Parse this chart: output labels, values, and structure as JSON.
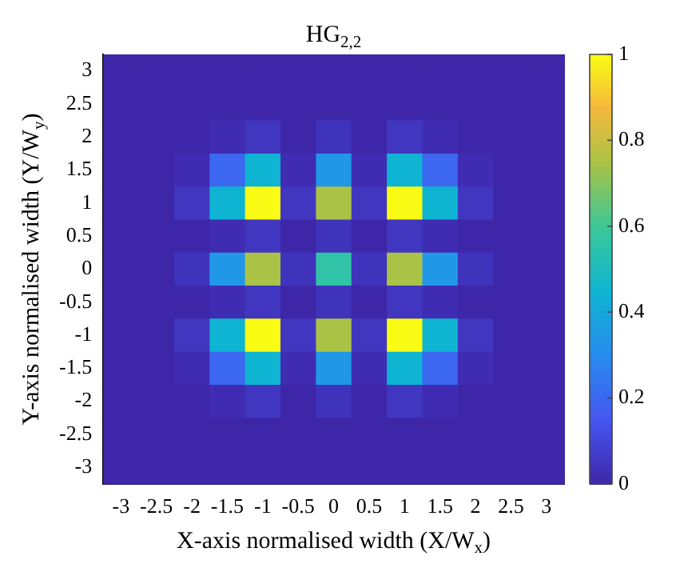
{
  "chart_data": {
    "type": "heatmap",
    "title": "HG$_{2,2}$",
    "xlabel": "X-axis normalised width (X/W$_{x}$)",
    "ylabel": "Y-axis normalised width (Y/W$_{y}$)",
    "categories": [
      "-3",
      "-2.5",
      "-2",
      "-1.5",
      "-1",
      "-0.5",
      "0",
      "0.5",
      "1",
      "1.5",
      "2",
      "2.5",
      "3"
    ],
    "y_categories": [
      "3",
      "2.5",
      "2",
      "1.5",
      "1",
      "0.5",
      "0",
      "-0.5",
      "-1",
      "-1.5",
      "-2",
      "-2.5",
      "-3"
    ],
    "cells": [
      [
        0,
        0,
        0,
        0,
        0,
        0,
        0,
        0,
        0,
        0,
        0,
        0,
        0
      ],
      [
        0,
        0,
        0,
        0,
        0,
        0,
        0,
        0,
        0,
        0,
        0,
        0,
        0
      ],
      [
        0,
        0,
        0,
        0.02,
        0.05,
        0,
        0.04,
        0,
        0.05,
        0.02,
        0,
        0,
        0
      ],
      [
        0,
        0,
        0.02,
        0.2,
        0.45,
        0.02,
        0.34,
        0.02,
        0.45,
        0.2,
        0.02,
        0,
        0
      ],
      [
        0,
        0,
        0.05,
        0.45,
        1,
        0.05,
        0.75,
        0.05,
        1,
        0.45,
        0.05,
        0,
        0
      ],
      [
        0,
        0,
        0,
        0.02,
        0.05,
        0,
        0.04,
        0,
        0.05,
        0.02,
        0,
        0,
        0
      ],
      [
        0,
        0,
        0.04,
        0.34,
        0.75,
        0.04,
        0.56,
        0.04,
        0.75,
        0.34,
        0.04,
        0,
        0
      ],
      [
        0,
        0,
        0,
        0.02,
        0.05,
        0,
        0.04,
        0,
        0.05,
        0.02,
        0,
        0,
        0
      ],
      [
        0,
        0,
        0.05,
        0.45,
        1,
        0.05,
        0.75,
        0.05,
        1,
        0.45,
        0.05,
        0,
        0
      ],
      [
        0,
        0,
        0.02,
        0.2,
        0.45,
        0.02,
        0.34,
        0.02,
        0.45,
        0.2,
        0.02,
        0,
        0
      ],
      [
        0,
        0,
        0,
        0.02,
        0.05,
        0,
        0.04,
        0,
        0.05,
        0.02,
        0,
        0,
        0
      ],
      [
        0,
        0,
        0,
        0,
        0,
        0,
        0,
        0,
        0,
        0,
        0,
        0,
        0
      ],
      [
        0,
        0,
        0,
        0,
        0,
        0,
        0,
        0,
        0,
        0,
        0,
        0,
        0
      ]
    ],
    "clim": [
      0,
      1
    ],
    "cticks": [
      0,
      0.2,
      0.4,
      0.6,
      0.8,
      1
    ]
  }
}
